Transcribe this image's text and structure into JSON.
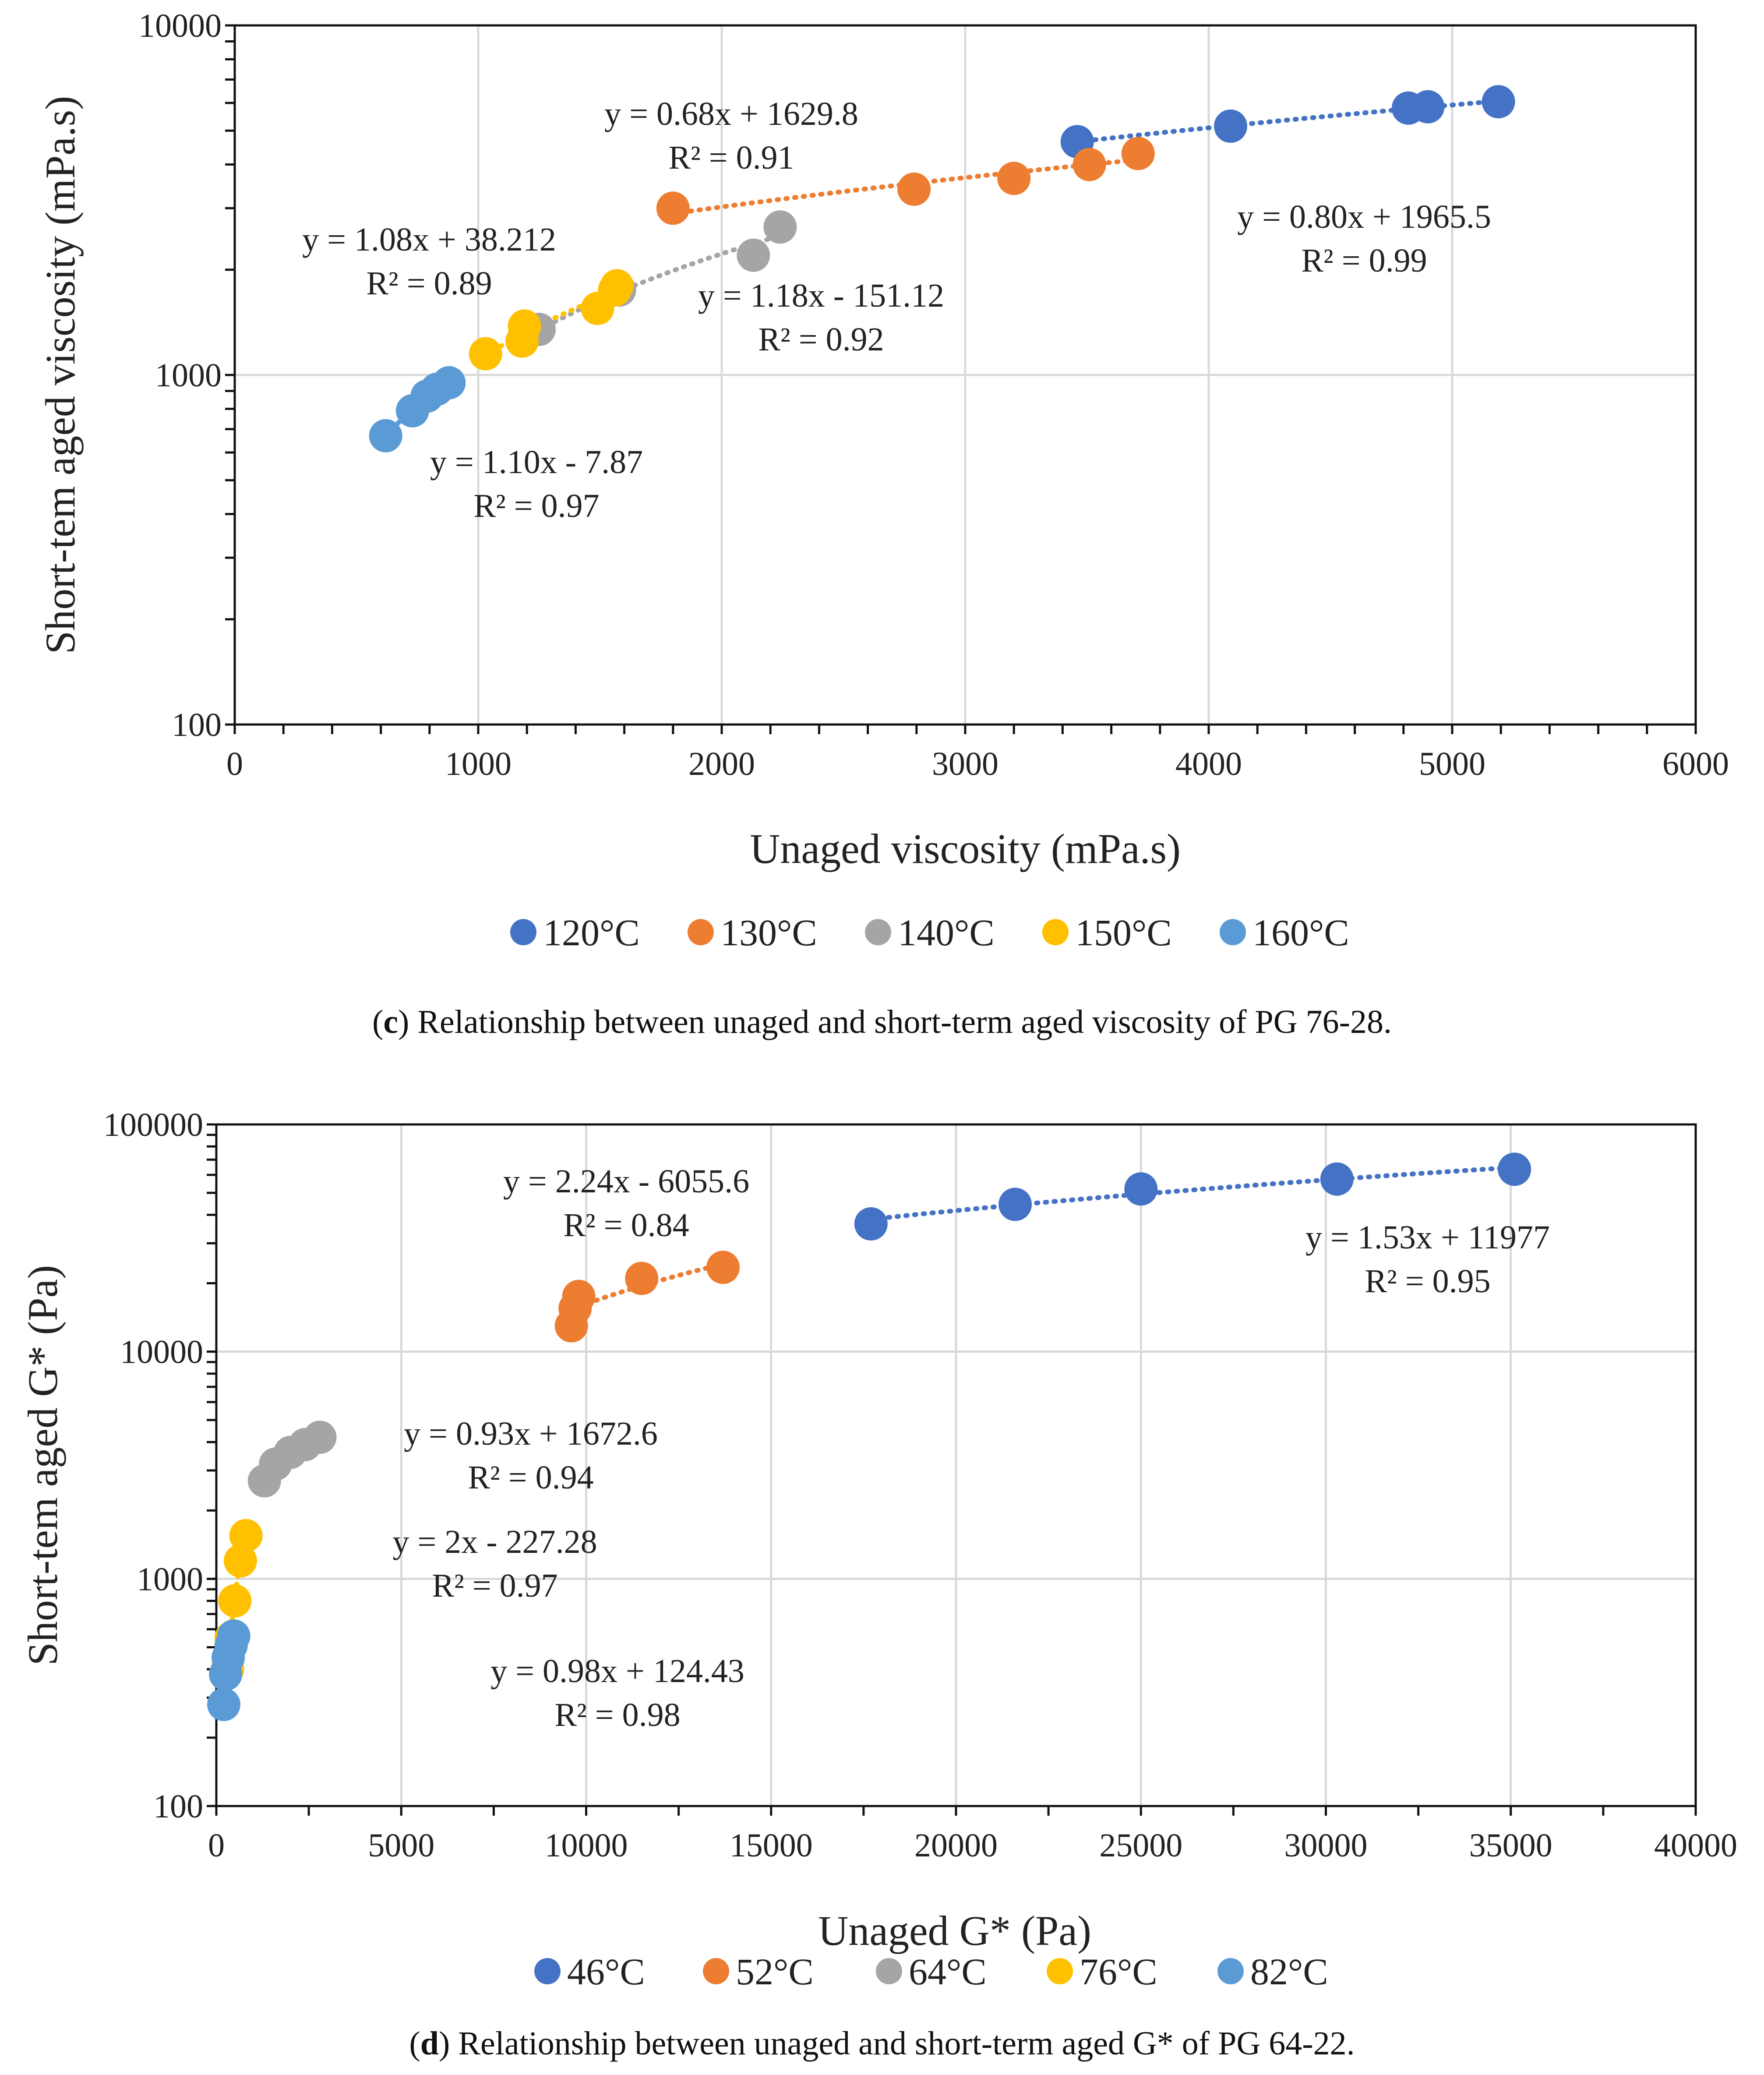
{
  "chart_data": [
    {
      "type": "scatter",
      "panel": "c",
      "xlabel": "Unaged viscosity (mPa.s)",
      "ylabel": "Short-tem aged viscosity (mPa.s)",
      "xlim": [
        0,
        6000
      ],
      "ylim": [
        100,
        10000
      ],
      "yscale": "log",
      "xticks": [
        "0",
        "1000",
        "2000",
        "3000",
        "4000",
        "5000",
        "6000"
      ],
      "yticks": [
        "100",
        "1000",
        "10000"
      ],
      "caption": {
        "letter": "c",
        "text": ") Relationship between unaged and short-term aged viscosity of PG 76-28."
      },
      "series": [
        {
          "name": "120°C",
          "color": "#4472C4",
          "x": [
            3460,
            4090,
            4820,
            4900,
            5190
          ],
          "y": [
            4650,
            5150,
            5800,
            5850,
            6050
          ]
        },
        {
          "name": "130°C",
          "color": "#ED7D31",
          "x": [
            1800,
            2790,
            3200,
            3510,
            3710
          ],
          "y": [
            3000,
            3400,
            3650,
            4000,
            4300
          ]
        },
        {
          "name": "140°C",
          "color": "#A5A5A5",
          "x": [
            1250,
            1580,
            2130,
            2240
          ],
          "y": [
            1350,
            1750,
            2200,
            2650
          ]
        },
        {
          "name": "150°C",
          "color": "#FFC000",
          "x": [
            1030,
            1180,
            1190,
            1490,
            1560,
            1570
          ],
          "y": [
            1150,
            1250,
            1380,
            1550,
            1750,
            1800
          ]
        },
        {
          "name": "160°C",
          "color": "#5B9BD5",
          "x": [
            620,
            730,
            790,
            830,
            880
          ],
          "y": [
            670,
            790,
            870,
            910,
            950
          ]
        }
      ],
      "annotations": [
        {
          "series": "120°C",
          "eq": "y = 0.80x + 1965.5",
          "r2": "R² = 0.99"
        },
        {
          "series": "130°C",
          "eq": "y = 0.68x + 1629.8",
          "r2": "R² = 0.91"
        },
        {
          "series": "140°C",
          "eq": "y = 1.18x - 151.12",
          "r2": "R² = 0.92"
        },
        {
          "series": "150°C",
          "eq": "y = 1.08x + 38.212",
          "r2": "R² = 0.89"
        },
        {
          "series": "160°C",
          "eq": "y = 1.10x - 7.87",
          "r2": "R² = 0.97"
        }
      ],
      "legend": [
        "120°C",
        "130°C",
        "140°C",
        "150°C",
        "160°C"
      ]
    },
    {
      "type": "scatter",
      "panel": "d",
      "xlabel": "Unaged G* (Pa)",
      "ylabel": "Short-tem aged G* (Pa)",
      "xlim": [
        0,
        40000
      ],
      "ylim": [
        100,
        100000
      ],
      "yscale": "log",
      "xticks": [
        "0",
        "5000",
        "10000",
        "15000",
        "20000",
        "25000",
        "30000",
        "35000",
        "40000"
      ],
      "yticks": [
        "100",
        "1000",
        "10000",
        "100000"
      ],
      "caption": {
        "letter": "d",
        "text": ") Relationship between unaged and short-term aged G* of PG 64-22."
      },
      "series": [
        {
          "name": "46°C",
          "color": "#4472C4",
          "x": [
            17700,
            21600,
            25000,
            30300,
            35100
          ],
          "y": [
            36500,
            44500,
            52000,
            57500,
            63500
          ]
        },
        {
          "name": "52°C",
          "color": "#ED7D31",
          "x": [
            9600,
            9700,
            9800,
            11500,
            13700
          ],
          "y": [
            13000,
            15500,
            17500,
            21000,
            23500
          ]
        },
        {
          "name": "64°C",
          "color": "#A5A5A5",
          "x": [
            1300,
            1600,
            2000,
            2400,
            2800
          ],
          "y": [
            2700,
            3200,
            3600,
            3900,
            4200
          ]
        },
        {
          "name": "76°C",
          "color": "#FFC000",
          "x": [
            300,
            400,
            500,
            650,
            800
          ],
          "y": [
            400,
            550,
            800,
            1200,
            1550
          ]
        },
        {
          "name": "82°C",
          "color": "#5B9BD5",
          "x": [
            200,
            250,
            320,
            400,
            470
          ],
          "y": [
            280,
            380,
            450,
            510,
            560
          ]
        }
      ],
      "annotations": [
        {
          "series": "46°C",
          "eq": "y = 1.53x + 11977",
          "r2": "R² = 0.95"
        },
        {
          "series": "52°C",
          "eq": "y = 2.24x - 6055.6",
          "r2": "R² = 0.84"
        },
        {
          "series": "64°C",
          "eq": "y = 0.93x + 1672.6",
          "r2": "R² = 0.94"
        },
        {
          "series": "76°C",
          "eq": "y = 2x - 227.28",
          "r2": "R² = 0.97"
        },
        {
          "series": "82°C",
          "eq": "y = 0.98x + 124.43",
          "r2": "R² = 0.98"
        }
      ],
      "legend": [
        "46°C",
        "52°C",
        "64°C",
        "76°C",
        "82°C"
      ]
    }
  ]
}
